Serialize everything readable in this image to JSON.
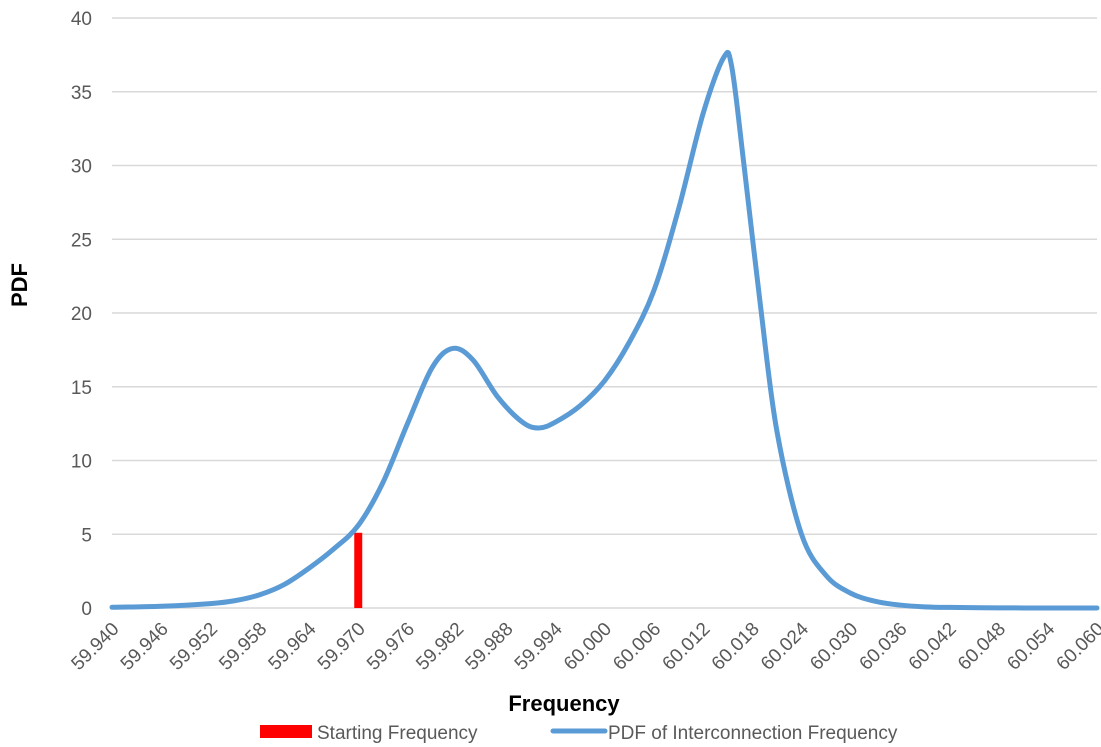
{
  "chart_data": {
    "type": "line",
    "title": "",
    "xlabel": "Frequency",
    "ylabel": "PDF",
    "xlim": [
      59.94,
      60.06
    ],
    "ylim": [
      0,
      40
    ],
    "y_ticks": [
      0,
      5,
      10,
      15,
      20,
      25,
      30,
      35,
      40
    ],
    "x_ticks": [
      "59.940",
      "59.946",
      "59.952",
      "59.958",
      "59.964",
      "59.970",
      "59.976",
      "59.982",
      "59.988",
      "59.994",
      "60.000",
      "60.006",
      "60.012",
      "60.018",
      "60.024",
      "60.030",
      "60.036",
      "60.042",
      "60.048",
      "60.054",
      "60.060"
    ],
    "grid": true,
    "legend_position": "bottom",
    "series": [
      {
        "name": "Starting Frequency",
        "kind": "bar",
        "color": "#ff0000",
        "x": [
          59.97
        ],
        "y": [
          5.1
        ]
      },
      {
        "name": "PDF of Interconnection Frequency",
        "kind": "line",
        "color": "#5b9bd5",
        "x": [
          59.94,
          59.946,
          59.952,
          59.955,
          59.958,
          59.961,
          59.964,
          59.967,
          59.97,
          59.973,
          59.976,
          59.979,
          59.9815,
          59.984,
          59.987,
          59.99,
          59.992,
          59.994,
          59.997,
          60.0,
          60.003,
          60.006,
          60.009,
          60.012,
          60.0145,
          60.0155,
          60.017,
          60.019,
          60.021,
          60.024,
          60.027,
          60.03,
          60.033,
          60.036,
          60.039,
          60.042,
          60.048,
          60.054,
          60.06
        ],
        "y": [
          0.05,
          0.12,
          0.3,
          0.5,
          0.9,
          1.6,
          2.7,
          4.0,
          5.6,
          8.5,
          12.5,
          16.3,
          17.6,
          16.8,
          14.3,
          12.6,
          12.2,
          12.6,
          13.7,
          15.4,
          18.0,
          21.5,
          27.0,
          33.5,
          37.3,
          36.7,
          30.0,
          20.5,
          12.0,
          5.0,
          2.2,
          1.0,
          0.45,
          0.2,
          0.08,
          0.04,
          0.01,
          0.0,
          0.0
        ]
      }
    ]
  }
}
